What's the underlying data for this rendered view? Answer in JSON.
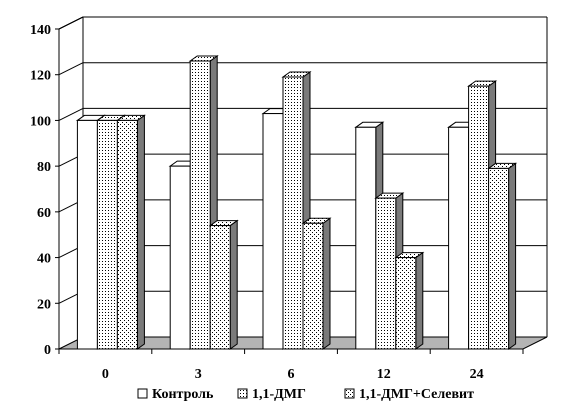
{
  "chart_data": {
    "type": "bar",
    "categories": [
      "0",
      "3",
      "6",
      "12",
      "24"
    ],
    "series": [
      {
        "name": "Контроль",
        "values": [
          100,
          80,
          103,
          97,
          97
        ],
        "pattern": "plain"
      },
      {
        "name": "1,1-ДМГ",
        "values": [
          100,
          126,
          119,
          66,
          115
        ],
        "pattern": "fine-dots"
      },
      {
        "name": "1,1-ДМГ+Селевит",
        "values": [
          100,
          54,
          55,
          40,
          79
        ],
        "pattern": "coarse-dots"
      }
    ],
    "ylim": [
      0,
      140
    ],
    "y_ticks": [
      "0",
      "20",
      "40",
      "60",
      "80",
      "100",
      "120",
      "140"
    ],
    "grid": true,
    "legend_position": "bottom",
    "colors": {
      "bar_face": "#ffffff",
      "bar_side": "#7a7a7a",
      "floor": "#b4b4b4",
      "dots": "#000000"
    }
  }
}
